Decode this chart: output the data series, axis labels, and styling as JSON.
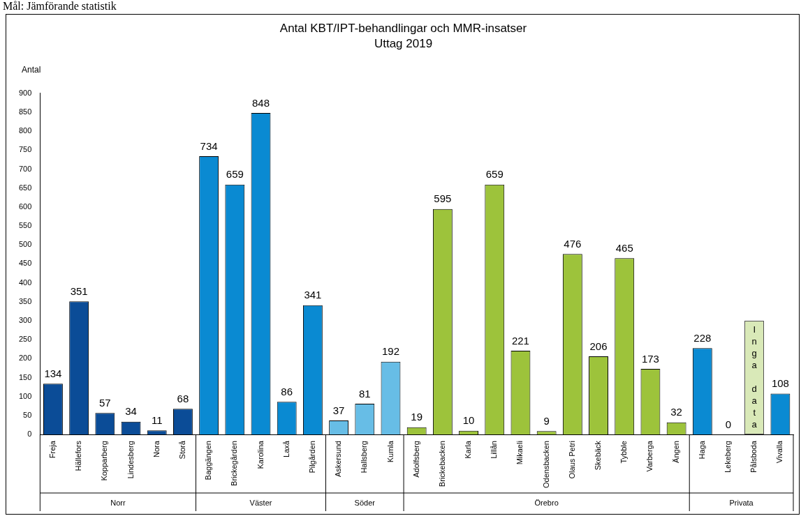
{
  "chart_data": {
    "type": "bar",
    "title": "Antal KBT/IPT-behandlingar och MMR-insatser",
    "subtitle": "Uttag 2019",
    "ylabel": "Antal",
    "categories": [
      "Freja",
      "Hällefors",
      "Kopparberg",
      "Lindesberg",
      "Nora",
      "Storå",
      "Baggängen",
      "Brickegården",
      "Karolina",
      "Laxå",
      "Pilgården",
      "Askersund",
      "Hallsberg",
      "Kumla",
      "Adolfsberg",
      "Brickebacken",
      "Karla",
      "Lillån",
      "Mikaeli",
      "Odensbacken",
      "Olaus Petri",
      "Skebäck",
      "Tybble",
      "Varberga",
      "Ängen",
      "Haga",
      "Lekeberg",
      "Pålsboda",
      "Vivalla"
    ],
    "values": [
      134,
      351,
      57,
      34,
      11,
      68,
      734,
      659,
      848,
      86,
      341,
      37,
      81,
      192,
      19,
      595,
      10,
      659,
      221,
      9,
      476,
      206,
      465,
      173,
      32,
      228,
      0,
      null,
      108
    ],
    "colors": [
      "#0b4c97",
      "#0b4c97",
      "#0b4c97",
      "#0b4c97",
      "#0b4c97",
      "#0b4c97",
      "#0a8ad2",
      "#0a8ad2",
      "#0a8ad2",
      "#0a8ad2",
      "#0a8ad2",
      "#67bde6",
      "#67bde6",
      "#67bde6",
      "#9dc33b",
      "#9dc33b",
      "#9dc33b",
      "#9dc33b",
      "#9dc33b",
      "#9dc33b",
      "#9dc33b",
      "#9dc33b",
      "#9dc33b",
      "#9dc33b",
      "#9dc33b",
      "#0a8ad2",
      "#0a8ad2",
      "#0a8ad2",
      "#0a8ad2"
    ],
    "ylim": [
      0,
      900
    ],
    "yticks": [
      0,
      50,
      100,
      150,
      200,
      250,
      300,
      350,
      400,
      450,
      500,
      550,
      600,
      650,
      700,
      750,
      800,
      850,
      900
    ],
    "grid": false,
    "legend": false,
    "data_labels": true,
    "annotations": [
      "Mål: Jämförande statistik",
      "Inga data",
      "Norr",
      "Väster",
      "Söder",
      "Örebro",
      "Privata"
    ]
  }
}
